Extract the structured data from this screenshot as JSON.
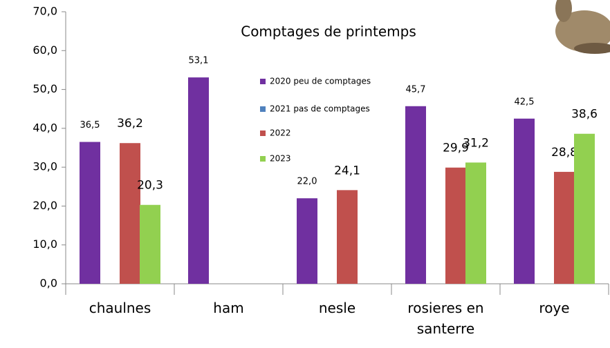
{
  "chart_data": {
    "type": "bar",
    "title": "Comptages de printemps",
    "categories": [
      "chaulnes",
      "ham",
      "nesle",
      "rosieres en santerre",
      "roye"
    ],
    "series": [
      {
        "name": "2020 peu de comptages",
        "color": "#7030a0",
        "values": [
          36.5,
          53.1,
          22.0,
          45.7,
          42.5
        ],
        "value_labels": [
          "36,5",
          "53,1",
          "22,0",
          "45,7",
          "42,5"
        ]
      },
      {
        "name": "2021 pas de comptages",
        "color": "#4f81bd",
        "values": [
          null,
          null,
          null,
          null,
          null
        ],
        "value_labels": [
          null,
          null,
          null,
          null,
          null
        ]
      },
      {
        "name": "2022",
        "color": "#c0504d",
        "values": [
          36.2,
          null,
          24.1,
          29.9,
          28.8
        ],
        "value_labels": [
          "36,2",
          null,
          "24,1",
          "29,9",
          "28,8"
        ]
      },
      {
        "name": "2023",
        "color": "#92d050",
        "values": [
          20.3,
          null,
          null,
          31.2,
          38.6
        ],
        "value_labels": [
          "20,3",
          null,
          null,
          "31,2",
          "38,6"
        ]
      }
    ],
    "ylim": [
      0,
      70
    ],
    "yticks": [
      {
        "value": 0,
        "label": "0,0"
      },
      {
        "value": 10,
        "label": "10,0"
      },
      {
        "value": 20,
        "label": "20,0"
      },
      {
        "value": 30,
        "label": "30,0"
      },
      {
        "value": 40,
        "label": "40,0"
      },
      {
        "value": 50,
        "label": "50,0"
      },
      {
        "value": 60,
        "label": "60,0"
      },
      {
        "value": 70,
        "label": "70,0"
      }
    ],
    "grid": false,
    "legend": "inside"
  }
}
